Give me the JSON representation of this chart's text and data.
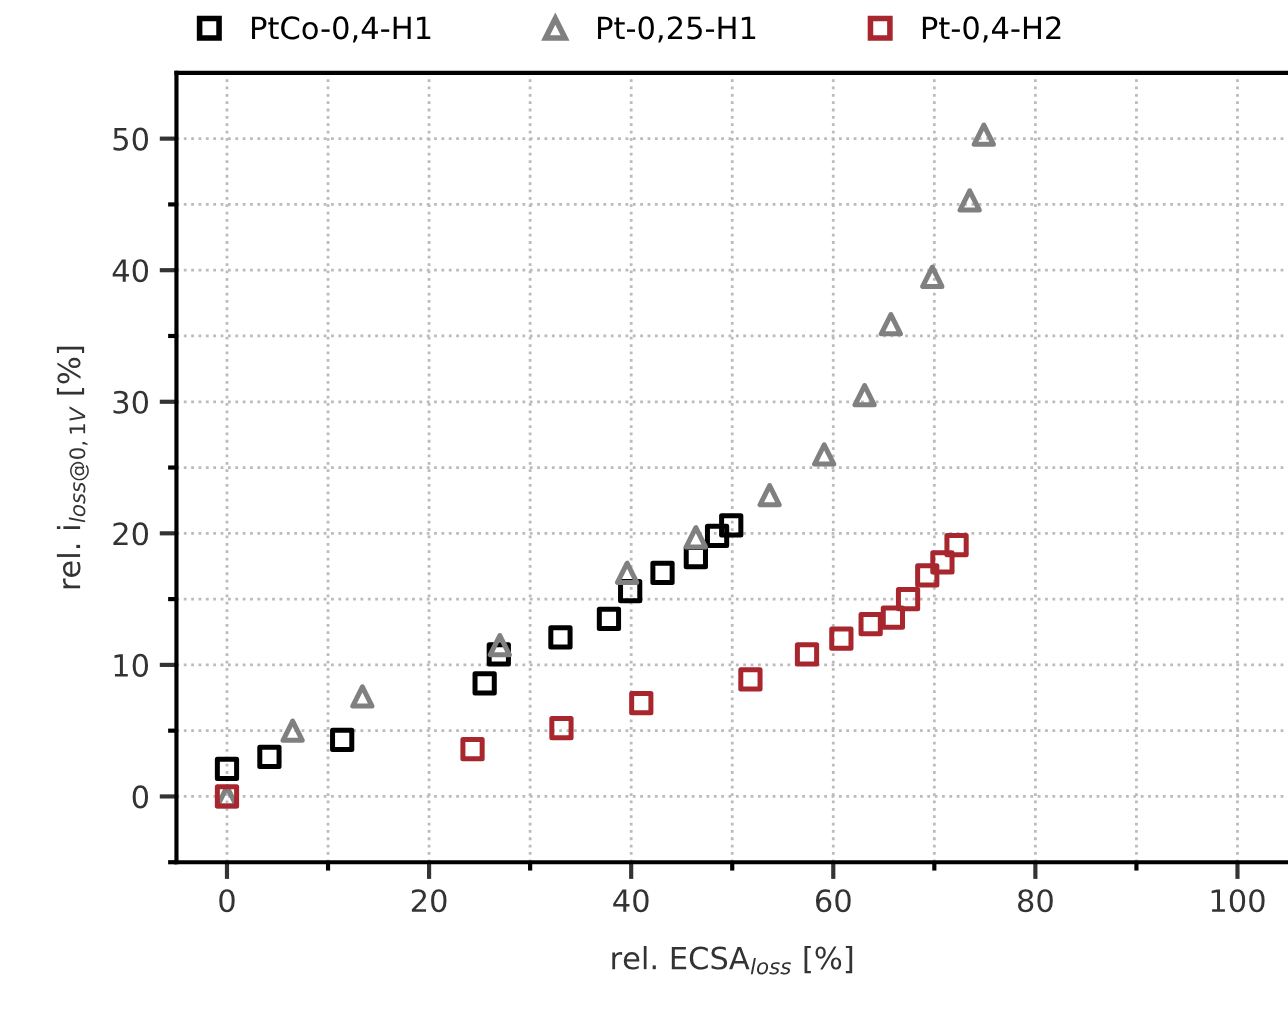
{
  "chart_data": {
    "type": "scatter",
    "xlabel": "rel. ECSA$_{loss}$ [%]",
    "ylabel": "rel. i$_{loss@0,1V}$ [%]",
    "xlim": [
      -5,
      105
    ],
    "ylim": [
      -5,
      55
    ],
    "xticks": [
      0,
      20,
      40,
      60,
      80,
      100
    ],
    "yticks": [
      0,
      10,
      20,
      30,
      40,
      50
    ],
    "grid": true,
    "legend": "top",
    "series": [
      {
        "name": "PtCo-0,4-H1",
        "color": "#000000",
        "marker": "square",
        "x": [
          0,
          4.2,
          11.4,
          25.5,
          26.9,
          33,
          37.8,
          39.9,
          43.1,
          46.4,
          48.5,
          49.9
        ],
        "values": [
          2.1,
          3,
          4.3,
          8.6,
          10.8,
          12.1,
          13.5,
          15.6,
          17,
          18.2,
          19.8,
          20.6
        ]
      },
      {
        "name": "Pt-0,25-H1",
        "color": "#808080",
        "marker": "triangle",
        "x": [
          0,
          6.5,
          13.4,
          27,
          39.6,
          46.4,
          53.7,
          59.1,
          63.1,
          65.7,
          69.8,
          73.5,
          74.9
        ],
        "values": [
          0,
          5,
          7.6,
          11.5,
          17,
          19.7,
          22.9,
          26,
          30.5,
          35.9,
          39.5,
          45.3,
          50.3
        ]
      },
      {
        "name": "Pt-0,4-H2",
        "color": "#a8262e",
        "marker": "square",
        "x": [
          0,
          24.3,
          33.1,
          41,
          51.8,
          57.4,
          60.8,
          63.7,
          65.9,
          67.4,
          69.3,
          70.8,
          72.2
        ],
        "values": [
          0,
          3.6,
          5.2,
          7.1,
          8.9,
          10.8,
          12,
          13.1,
          13.6,
          15,
          16.8,
          17.8,
          19.1
        ]
      }
    ]
  }
}
